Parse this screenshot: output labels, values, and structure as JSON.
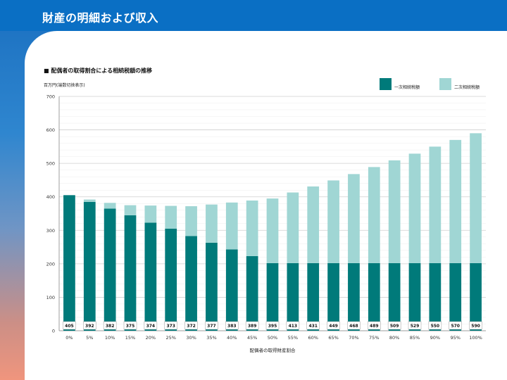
{
  "header": {
    "title": "財産の明細および収入"
  },
  "chart_data": {
    "type": "bar",
    "stacked": true,
    "title": "■ 配偶者の取得割合による相続税額の推移",
    "unit_label": "百万円(端数切捨表示)",
    "xlabel": "配偶者の取得財産割合",
    "ylabel": "",
    "ylim": [
      0,
      700
    ],
    "yticks": [
      0,
      100,
      200,
      300,
      400,
      500,
      600,
      700
    ],
    "grid": true,
    "legend_position": "top-right",
    "categories": [
      "0%",
      "5%",
      "10%",
      "15%",
      "20%",
      "25%",
      "30%",
      "35%",
      "40%",
      "45%",
      "50%",
      "55%",
      "60%",
      "65%",
      "70%",
      "75%",
      "80%",
      "85%",
      "90%",
      "95%",
      "100%"
    ],
    "series": [
      {
        "name": "一次相続税額",
        "color": "#007a7a",
        "values": [
          405,
          385,
          365,
          345,
          323,
          305,
          283,
          263,
          243,
          223,
          202,
          202,
          202,
          202,
          202,
          202,
          202,
          202,
          202,
          202,
          202
        ]
      },
      {
        "name": "二次相続税額",
        "color": "#a0d6d4",
        "values": [
          0,
          7,
          17,
          30,
          51,
          68,
          89,
          114,
          140,
          166,
          193,
          211,
          229,
          247,
          266,
          287,
          307,
          327,
          348,
          368,
          388
        ]
      }
    ],
    "totals": [
      405,
      392,
      382,
      375,
      374,
      373,
      372,
      377,
      383,
      389,
      395,
      413,
      431,
      449,
      468,
      489,
      509,
      529,
      550,
      570,
      590
    ]
  }
}
